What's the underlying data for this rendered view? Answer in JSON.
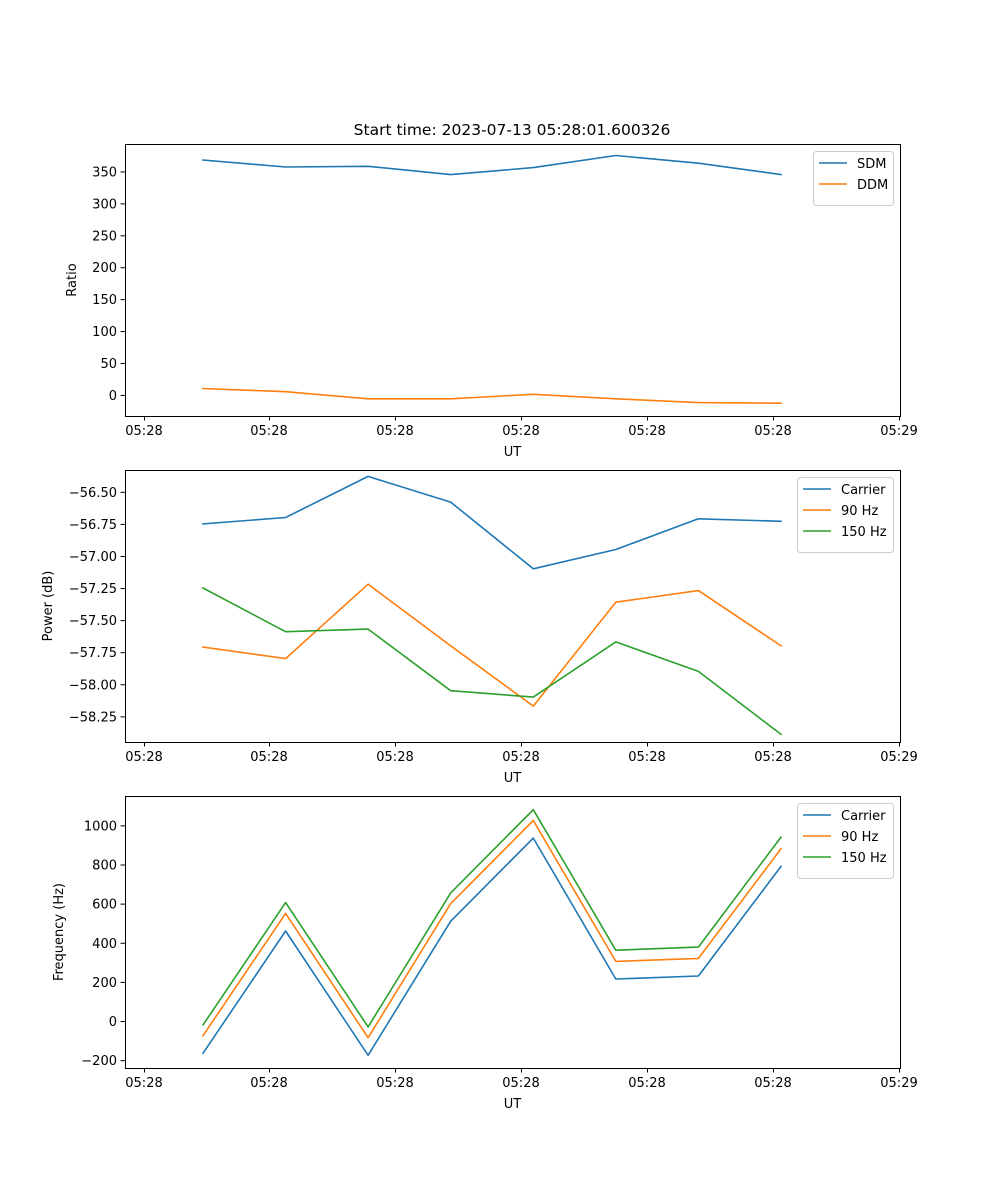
{
  "title": "Start time: 2023-07-13 05:28:01.600326",
  "chart_data": [
    {
      "type": "line",
      "name": "ratio",
      "xlabel": "UT",
      "ylabel": "Ratio",
      "x_tick_labels": [
        "05:28",
        "05:28",
        "05:28",
        "05:28",
        "05:28",
        "05:28",
        "05:29"
      ],
      "y_ticks": [
        0,
        50,
        100,
        150,
        200,
        250,
        300,
        350
      ],
      "y_tick_labels": [
        "0",
        "50",
        "100",
        "150",
        "200",
        "250",
        "300",
        "350"
      ],
      "ylim": [
        -33,
        393
      ],
      "legend_position": "top-right",
      "x": [
        1,
        2,
        3,
        4,
        5,
        6,
        7,
        8
      ],
      "series": [
        {
          "name": "SDM",
          "color": "#1f77b4",
          "values": [
            368,
            357,
            358,
            345,
            356,
            375,
            363,
            345
          ]
        },
        {
          "name": "DDM",
          "color": "#ff7f0e",
          "values": [
            10,
            5,
            -6,
            -6,
            1,
            -6,
            -12,
            -13
          ]
        }
      ]
    },
    {
      "type": "line",
      "name": "power",
      "xlabel": "UT",
      "ylabel": "Power (dB)",
      "x_tick_labels": [
        "05:28",
        "05:28",
        "05:28",
        "05:28",
        "05:28",
        "05:28",
        "05:29"
      ],
      "y_ticks": [
        -58.25,
        -58.0,
        -57.75,
        -57.5,
        -57.25,
        -57.0,
        -56.75,
        -56.5
      ],
      "y_tick_labels": [
        "−58.25",
        "−58.00",
        "−57.75",
        "−57.50",
        "−57.25",
        "−57.00",
        "−56.75",
        "−56.50"
      ],
      "ylim": [
        -58.45,
        -56.33
      ],
      "legend_position": "top-right",
      "x": [
        1,
        2,
        3,
        4,
        5,
        6,
        7,
        8
      ],
      "series": [
        {
          "name": "Carrier",
          "color": "#1f77b4",
          "values": [
            -56.75,
            -56.7,
            -56.38,
            -56.58,
            -57.1,
            -56.95,
            -56.71,
            -56.73
          ]
        },
        {
          "name": "90 Hz",
          "color": "#ff7f0e",
          "values": [
            -57.71,
            -57.8,
            -57.22,
            -57.7,
            -58.17,
            -57.36,
            -57.27,
            -57.7
          ]
        },
        {
          "name": "150 Hz",
          "color": "#2ca02c",
          "values": [
            -57.25,
            -57.59,
            -57.57,
            -58.05,
            -58.1,
            -57.67,
            -57.9,
            -58.39
          ]
        }
      ]
    },
    {
      "type": "line",
      "name": "frequency",
      "xlabel": "UT",
      "ylabel": "Frequency (Hz)",
      "x_tick_labels": [
        "05:28",
        "05:28",
        "05:28",
        "05:28",
        "05:28",
        "05:28",
        "05:29"
      ],
      "y_ticks": [
        -200,
        0,
        200,
        400,
        600,
        800,
        1000
      ],
      "y_tick_labels": [
        "−200",
        "0",
        "200",
        "400",
        "600",
        "800",
        "1000"
      ],
      "ylim": [
        -240,
        1150
      ],
      "legend_position": "top-right",
      "x": [
        1,
        2,
        3,
        4,
        5,
        6,
        7,
        8
      ],
      "series": [
        {
          "name": "Carrier",
          "color": "#1f77b4",
          "values": [
            -165,
            460,
            -175,
            510,
            935,
            215,
            230,
            790
          ]
        },
        {
          "name": "90 Hz",
          "color": "#ff7f0e",
          "values": [
            -75,
            550,
            -85,
            600,
            1025,
            305,
            320,
            880
          ]
        },
        {
          "name": "150 Hz",
          "color": "#2ca02c",
          "values": [
            -20,
            605,
            -30,
            655,
            1080,
            362,
            378,
            940
          ]
        }
      ]
    }
  ]
}
